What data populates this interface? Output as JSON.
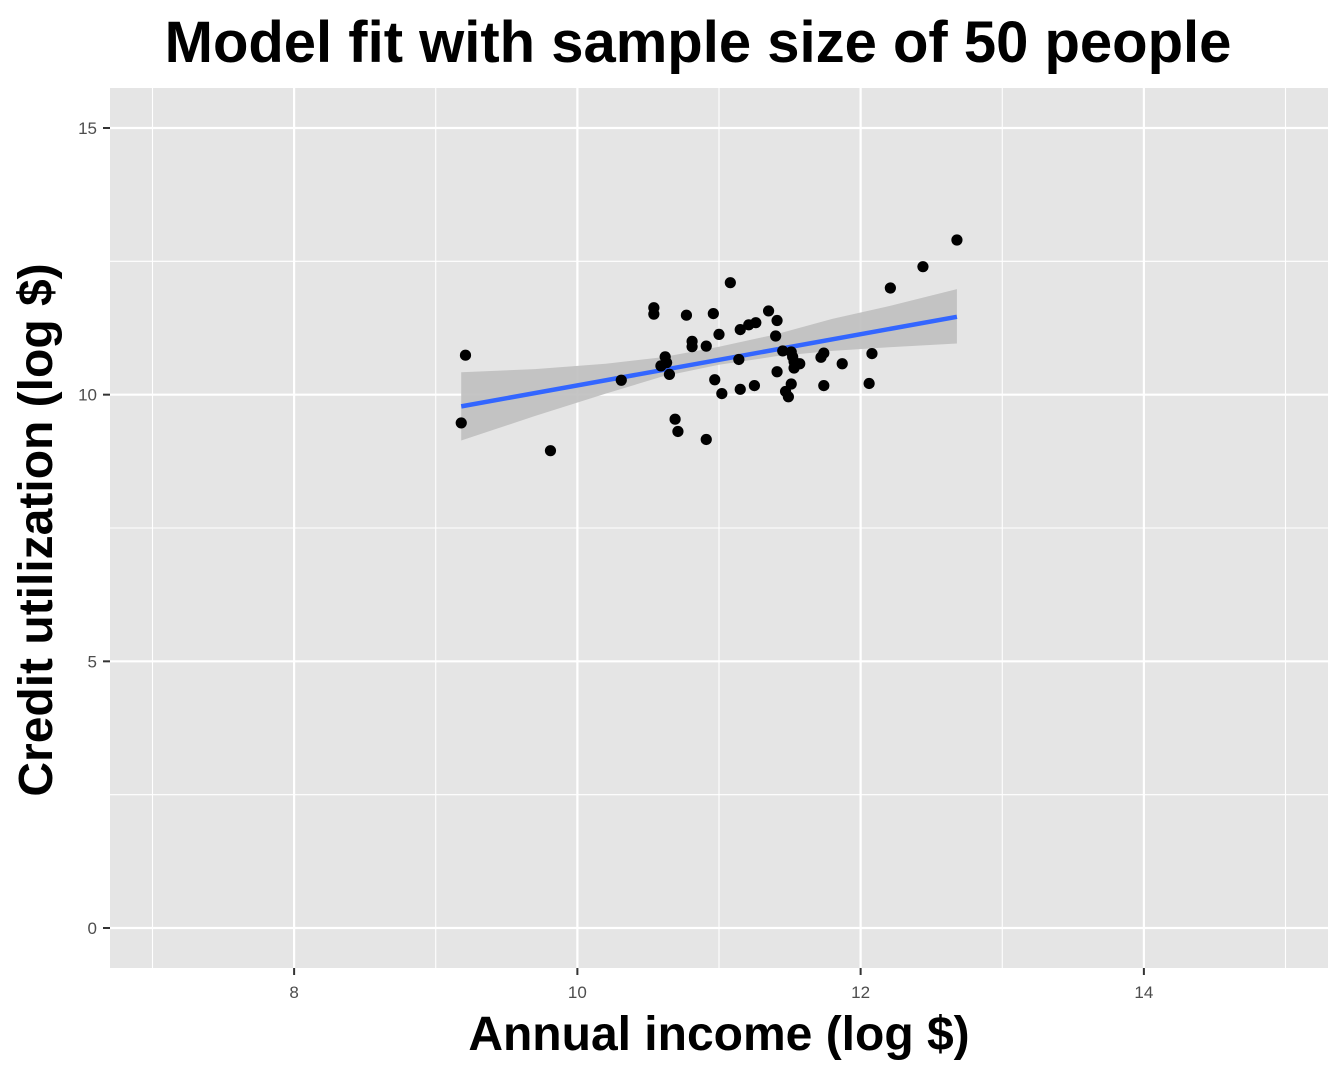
{
  "chart_data": {
    "type": "scatter",
    "title": "Model fit with sample size of 50 people",
    "xlabel": "Annual income (log $)",
    "ylabel": "Credit utilization (log $)",
    "xlim": [
      6.7,
      15.3
    ],
    "ylim": [
      -0.75,
      15.75
    ],
    "x_ticks": [
      8,
      10,
      12,
      14
    ],
    "x_tick_labels": [
      "8",
      "10",
      "12",
      "14"
    ],
    "y_ticks": [
      0,
      5,
      10,
      15
    ],
    "y_tick_labels": [
      "0",
      "5",
      "10",
      "15"
    ],
    "grid": true,
    "legend": "none",
    "colors": {
      "panel_background": "#e5e5e5",
      "grid": "#ffffff",
      "points": "#000000",
      "fit_line": "#3366ff",
      "confidence_band": "#bfbfbf"
    },
    "points": [
      {
        "x": 9.18,
        "y": 9.47
      },
      {
        "x": 9.21,
        "y": 10.74
      },
      {
        "x": 9.81,
        "y": 8.95
      },
      {
        "x": 10.31,
        "y": 10.27
      },
      {
        "x": 10.54,
        "y": 11.63
      },
      {
        "x": 10.54,
        "y": 11.51
      },
      {
        "x": 10.59,
        "y": 10.54
      },
      {
        "x": 10.62,
        "y": 10.71
      },
      {
        "x": 10.63,
        "y": 10.6
      },
      {
        "x": 10.65,
        "y": 10.38
      },
      {
        "x": 10.69,
        "y": 9.54
      },
      {
        "x": 10.71,
        "y": 9.31
      },
      {
        "x": 10.77,
        "y": 11.49
      },
      {
        "x": 10.81,
        "y": 11.0
      },
      {
        "x": 10.81,
        "y": 10.9
      },
      {
        "x": 10.91,
        "y": 10.91
      },
      {
        "x": 10.91,
        "y": 9.16
      },
      {
        "x": 10.96,
        "y": 11.52
      },
      {
        "x": 10.97,
        "y": 10.28
      },
      {
        "x": 11.0,
        "y": 11.13
      },
      {
        "x": 11.02,
        "y": 10.02
      },
      {
        "x": 11.08,
        "y": 12.1
      },
      {
        "x": 11.14,
        "y": 10.66
      },
      {
        "x": 11.15,
        "y": 11.22
      },
      {
        "x": 11.15,
        "y": 10.1
      },
      {
        "x": 11.21,
        "y": 11.31
      },
      {
        "x": 11.26,
        "y": 11.35
      },
      {
        "x": 11.25,
        "y": 10.17
      },
      {
        "x": 11.35,
        "y": 11.57
      },
      {
        "x": 11.41,
        "y": 11.39
      },
      {
        "x": 11.4,
        "y": 11.1
      },
      {
        "x": 11.41,
        "y": 10.43
      },
      {
        "x": 11.45,
        "y": 10.82
      },
      {
        "x": 11.47,
        "y": 10.06
      },
      {
        "x": 11.49,
        "y": 9.96
      },
      {
        "x": 11.51,
        "y": 10.2
      },
      {
        "x": 11.52,
        "y": 10.71
      },
      {
        "x": 11.51,
        "y": 10.8
      },
      {
        "x": 11.53,
        "y": 10.5
      },
      {
        "x": 11.57,
        "y": 10.58
      },
      {
        "x": 11.72,
        "y": 10.7
      },
      {
        "x": 11.74,
        "y": 10.78
      },
      {
        "x": 11.74,
        "y": 10.17
      },
      {
        "x": 11.87,
        "y": 10.58
      },
      {
        "x": 12.06,
        "y": 10.21
      },
      {
        "x": 12.08,
        "y": 10.77
      },
      {
        "x": 12.21,
        "y": 12.0
      },
      {
        "x": 12.44,
        "y": 12.4
      },
      {
        "x": 12.68,
        "y": 12.9
      },
      {
        "x": 11.53,
        "y": 10.62
      }
    ],
    "fit_line": {
      "x": [
        9.18,
        12.68
      ],
      "y": [
        9.78,
        11.46
      ]
    },
    "confidence_band": [
      {
        "x": 9.18,
        "lower": 9.14,
        "upper": 10.42
      },
      {
        "x": 9.7,
        "lower": 9.6,
        "upper": 10.48
      },
      {
        "x": 10.2,
        "lower": 10.02,
        "upper": 10.58
      },
      {
        "x": 10.6,
        "lower": 10.34,
        "upper": 10.7
      },
      {
        "x": 11.0,
        "lower": 10.56,
        "upper": 10.9
      },
      {
        "x": 11.4,
        "lower": 10.72,
        "upper": 11.13
      },
      {
        "x": 11.8,
        "lower": 10.82,
        "upper": 11.42
      },
      {
        "x": 12.2,
        "lower": 10.89,
        "upper": 11.66
      },
      {
        "x": 12.68,
        "lower": 10.96,
        "upper": 11.98
      }
    ]
  }
}
